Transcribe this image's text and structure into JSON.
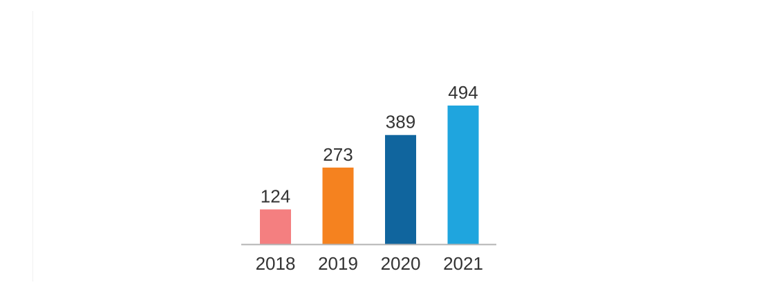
{
  "chart_data": {
    "type": "bar",
    "categories": [
      "2018",
      "2019",
      "2020",
      "2021"
    ],
    "values": [
      124,
      273,
      389,
      494
    ],
    "colors": [
      "#f47f80",
      "#f5821f",
      "#10659e",
      "#1fa5de"
    ],
    "title": "",
    "xlabel": "",
    "ylabel": "",
    "ylim": [
      0,
      494
    ],
    "grid": false,
    "legend": "none",
    "axis_color": "#b3b3b3"
  }
}
